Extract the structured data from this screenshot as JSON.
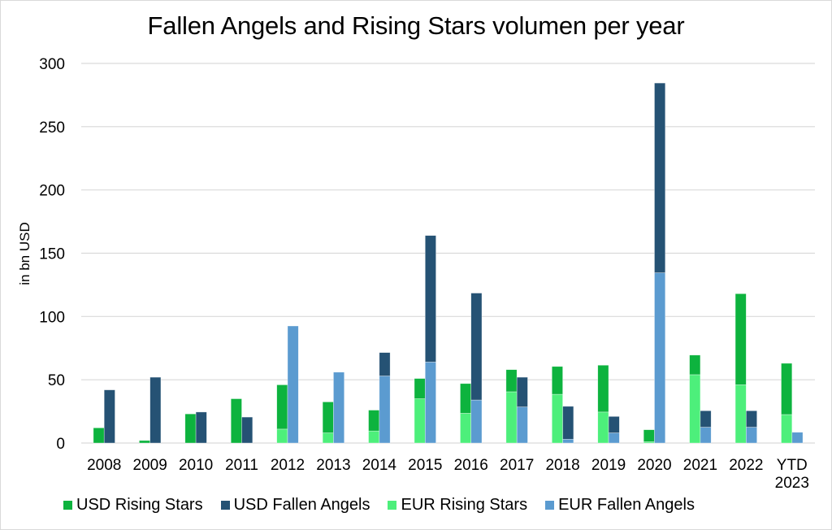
{
  "chart_data": {
    "type": "bar",
    "subtype": "stacked-grouped",
    "title": "Fallen Angels and Rising Stars volumen per year",
    "xlabel": "",
    "ylabel": "in bn USD",
    "ylim": [
      0,
      300
    ],
    "yticks": [
      0,
      50,
      100,
      150,
      200,
      250,
      300
    ],
    "grid": true,
    "legend_position": "bottom",
    "categories": [
      "2008",
      "2009",
      "2010",
      "2011",
      "2012",
      "2013",
      "2014",
      "2015",
      "2016",
      "2017",
      "2018",
      "2019",
      "2020",
      "2021",
      "2022",
      "YTD 2023"
    ],
    "category_lines": [
      [
        "2008"
      ],
      [
        "2009"
      ],
      [
        "2010"
      ],
      [
        "2011"
      ],
      [
        "2012"
      ],
      [
        "2013"
      ],
      [
        "2014"
      ],
      [
        "2015"
      ],
      [
        "2016"
      ],
      [
        "2017"
      ],
      [
        "2018"
      ],
      [
        "2019"
      ],
      [
        "2020"
      ],
      [
        "2021"
      ],
      [
        "2022"
      ],
      [
        "YTD",
        "2023"
      ]
    ],
    "groups": [
      {
        "name": "Rising Stars",
        "stack": [
          "EUR Rising Stars",
          "USD Rising Stars"
        ]
      },
      {
        "name": "Fallen Angels",
        "stack": [
          "EUR Fallen Angels",
          "USD Fallen Angels"
        ]
      }
    ],
    "series": [
      {
        "name": "USD Rising Stars",
        "group": "Rising Stars",
        "color": "#0db33e",
        "values": [
          12,
          2,
          23,
          35,
          35,
          24.5,
          16.5,
          16,
          23.5,
          17.5,
          22,
          37,
          9.5,
          15.5,
          72,
          40.5
        ]
      },
      {
        "name": "USD Fallen Angels",
        "group": "Fallen Angels",
        "color": "#255274",
        "values": [
          42,
          52,
          24.5,
          20.5,
          0,
          0,
          18.5,
          100,
          84.5,
          23.5,
          26,
          13,
          150,
          13,
          13,
          0
        ]
      },
      {
        "name": "EUR Rising Stars",
        "group": "Rising Stars",
        "color": "#4def7b",
        "values": [
          0,
          0,
          0,
          0,
          11,
          8,
          9.5,
          35,
          23.5,
          40.5,
          38.5,
          24.5,
          1,
          54,
          46,
          22.5
        ]
      },
      {
        "name": "EUR Fallen Angels",
        "group": "Fallen Angels",
        "color": "#5b9bd0",
        "values": [
          0,
          0,
          0,
          0,
          92.5,
          56,
          53,
          64,
          34,
          28.5,
          3,
          8,
          134.5,
          12.5,
          12.5,
          8.5
        ]
      }
    ],
    "legend": [
      "USD Rising Stars",
      "USD Fallen Angels",
      "EUR Rising Stars",
      "EUR Fallen Angels"
    ]
  },
  "colors": {
    "gridline": "#d9d9d9",
    "axis": "#d9d9d9"
  }
}
